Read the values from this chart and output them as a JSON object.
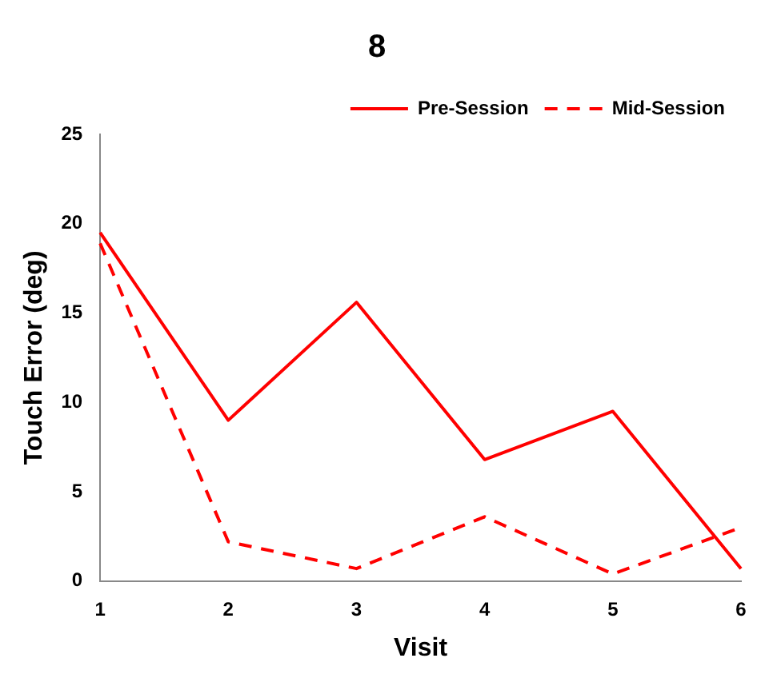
{
  "chart_data": {
    "type": "line",
    "title": "8",
    "xlabel": "Visit",
    "ylabel": "Touch Error (deg)",
    "categories": [
      "1",
      "2",
      "3",
      "4",
      "5",
      "6"
    ],
    "series": [
      {
        "name": "Pre-Session",
        "color": "#ff0000",
        "line_style": "solid",
        "values": [
          19.5,
          9.0,
          15.6,
          6.8,
          9.5,
          0.7
        ]
      },
      {
        "name": "Mid-Session",
        "color": "#ff0000",
        "line_style": "dashed",
        "values": [
          18.9,
          2.2,
          0.7,
          3.6,
          0.4,
          3.0
        ]
      }
    ],
    "ylim": [
      0,
      25
    ],
    "yticks": [
      0,
      5,
      10,
      15,
      20,
      25
    ],
    "grid": false,
    "legend": "top right",
    "marker": "none"
  }
}
